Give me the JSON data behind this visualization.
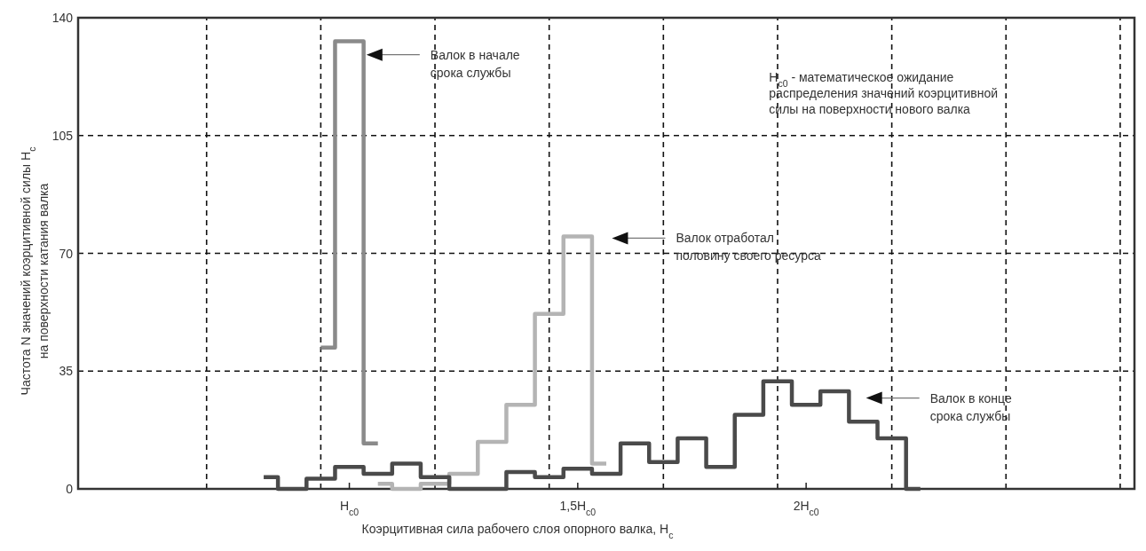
{
  "chart_data": {
    "type": "step",
    "xlabel": "Коэрцитивная сила рабочего слоя опорного валка, H$_{c}$",
    "ylabel": "Частота N значений коэрцитивной силы H$_{c}$\nна поверхности катания валка",
    "categories": [
      null,
      null,
      null,
      null,
      null,
      null,
      null,
      null,
      null,
      "H$_{c0}$",
      null,
      null,
      null,
      null,
      null,
      null,
      null,
      "1,5H$_{c0}$",
      null,
      null,
      null,
      null,
      null,
      null,
      null,
      "2H$_{c0}$",
      null,
      null,
      null,
      null,
      null,
      null,
      null,
      null,
      null,
      null,
      null
    ],
    "ylim": [
      0,
      140
    ],
    "yticks": [
      0,
      35,
      70,
      105,
      140
    ],
    "grid": true,
    "line_style": "solid",
    "series": [
      {
        "color": "#8a8a8a",
        "values": [
          null,
          null,
          null,
          null,
          null,
          null,
          null,
          null,
          42,
          133,
          13.5,
          null,
          null,
          null,
          null,
          null,
          null,
          null,
          null,
          null,
          null,
          null,
          null,
          null,
          null,
          null,
          null,
          null,
          null,
          null,
          null,
          null,
          null,
          null,
          null,
          null,
          null
        ]
      },
      {
        "color": "#b4b4b4",
        "values": [
          null,
          null,
          null,
          null,
          null,
          null,
          null,
          null,
          null,
          null,
          1.5,
          0,
          1.5,
          4.5,
          14,
          25,
          52,
          75,
          7.5,
          null,
          null,
          null,
          null,
          null,
          null,
          null,
          null,
          null,
          null,
          null,
          null,
          null,
          null,
          null,
          null,
          null,
          null
        ]
      },
      {
        "color": "#4a4a4a",
        "values": [
          null,
          null,
          null,
          null,
          null,
          null,
          3.5,
          0,
          3,
          6.5,
          4.5,
          7.5,
          3.5,
          0,
          0,
          5,
          3.5,
          6,
          4.5,
          13.5,
          8,
          15,
          6.5,
          22,
          32,
          25,
          29,
          20,
          15,
          0,
          null,
          null,
          null,
          null,
          null,
          null,
          null
        ]
      }
    ],
    "annotations": [
      "Валок в начале\nсрока службы",
      "Валок отработал\nполовину своего ресурса",
      "Валок в конце\nсрока службы",
      "H$_{c0}$ - математическое ожидание\nраспределения значений коэрцитивной\nсилы на поверхности нового валка"
    ]
  }
}
